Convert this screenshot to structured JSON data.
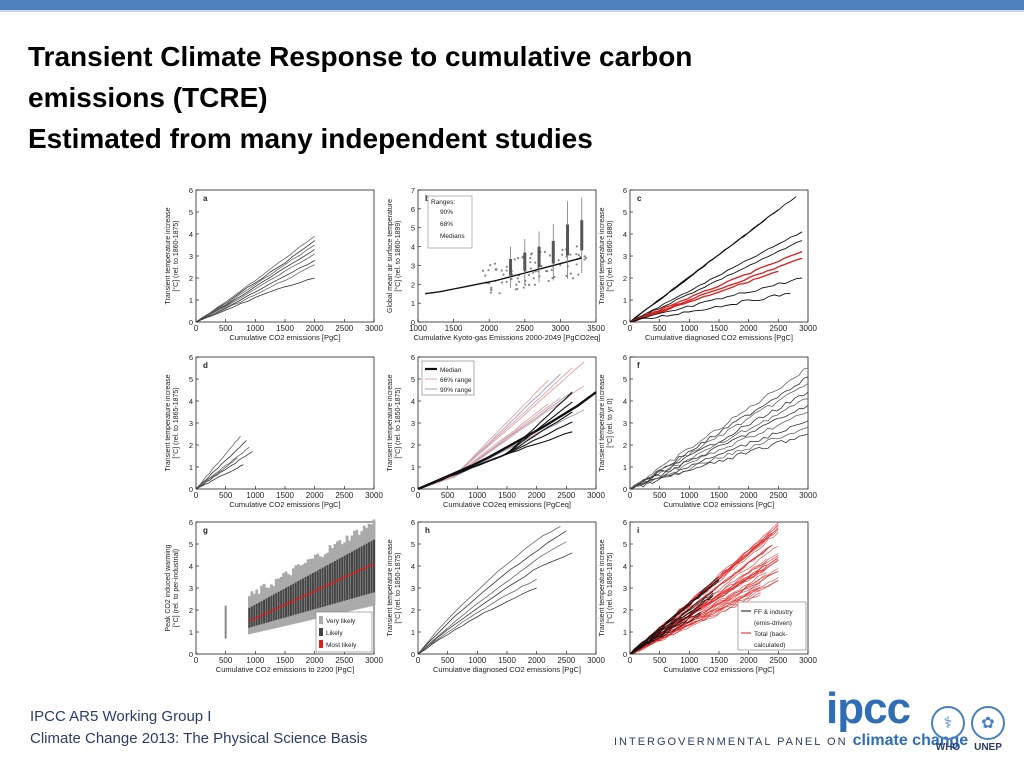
{
  "slide": {
    "title_lines": [
      "Transient Climate Response to cumulative carbon",
      "emissions (TCRE)",
      "Estimated from many independent studies"
    ],
    "footer_lines": [
      "IPCC AR5 Working Group I",
      "Climate Change 2013:  The Physical Science Basis"
    ],
    "logo": {
      "name": "ipcc",
      "line_prefix": "INTERGOVERNMENTAL PANEL ON",
      "line_emph": "climate change"
    },
    "agencies": [
      "WHO",
      "UNEP"
    ],
    "colors": {
      "topbar": "#4f81bd",
      "red_series": "#dd1c1c",
      "black_series": "#111111",
      "logo_blue": "#2f6db5"
    }
  },
  "chart_data": [
    {
      "panel": "a",
      "type": "line",
      "xlabel": "Cumulative CO2 emissions [PgC]",
      "ylabel": [
        "Transient temperature increase",
        "[°C] (rel. to 1860-1875)"
      ],
      "xlim": [
        0,
        3000
      ],
      "ylim": [
        0,
        6
      ],
      "xticks": [
        "0",
        "500",
        "1000",
        "1500",
        "2000",
        "2500",
        "3000"
      ],
      "yticks": [
        "0",
        "1",
        "2",
        "3",
        "4",
        "5",
        "6"
      ],
      "series": [
        {
          "x": [
            0,
            500,
            1000,
            1500,
            2000
          ],
          "y": [
            0,
            0.9,
            1.9,
            2.9,
            3.9
          ]
        },
        {
          "x": [
            0,
            500,
            1000,
            1500,
            2000
          ],
          "y": [
            0,
            0.85,
            1.8,
            2.7,
            3.7
          ]
        },
        {
          "x": [
            0,
            500,
            1000,
            1500,
            2000
          ],
          "y": [
            0,
            0.8,
            1.7,
            2.6,
            3.5
          ]
        },
        {
          "x": [
            0,
            500,
            1000,
            1500,
            2000
          ],
          "y": [
            0,
            0.75,
            1.6,
            2.45,
            3.3
          ]
        },
        {
          "x": [
            0,
            500,
            1000,
            1500,
            2000
          ],
          "y": [
            0,
            0.7,
            1.5,
            2.3,
            3.1
          ]
        },
        {
          "x": [
            0,
            500,
            1000,
            1500,
            2000
          ],
          "y": [
            0,
            0.65,
            1.35,
            2.1,
            2.8
          ]
        },
        {
          "x": [
            0,
            500,
            1000,
            1500,
            2000
          ],
          "y": [
            0,
            0.6,
            1.25,
            1.9,
            2.6
          ]
        },
        {
          "x": [
            0,
            500,
            1000,
            1500,
            2000
          ],
          "y": [
            0,
            0.55,
            1.1,
            1.6,
            2.0
          ]
        }
      ]
    },
    {
      "panel": "b",
      "type": "scatter",
      "xlabel": "Cumulative Kyoto-gas Emissions 2000-2049 [PgCO2eq]",
      "ylabel": [
        "Global mean air surface temperature",
        "[°C] (rel. to 1860-1899)"
      ],
      "xlim": [
        1000,
        3500
      ],
      "ylim": [
        0,
        7
      ],
      "xticks": [
        "1000",
        "1500",
        "2000",
        "2500",
        "3000",
        "3500"
      ],
      "yticks": [
        "0",
        "1",
        "2",
        "3",
        "4",
        "5",
        "6",
        "7"
      ],
      "legend": {
        "title": "Ranges:",
        "items": [
          "90%",
          "68%",
          "Medians"
        ],
        "position": "top-left"
      },
      "medians": {
        "x": [
          1100,
          1300,
          1500,
          1700,
          1900,
          2100,
          2300,
          2500,
          2700,
          2900,
          3100,
          3300
        ],
        "y": [
          1.5,
          1.6,
          1.75,
          1.9,
          2.05,
          2.2,
          2.4,
          2.6,
          2.8,
          3.0,
          3.2,
          3.4
        ]
      },
      "ranges": [
        {
          "x": 2300,
          "lo": 1.8,
          "hi": 4.0
        },
        {
          "x": 2500,
          "lo": 2.0,
          "hi": 4.4
        },
        {
          "x": 2700,
          "lo": 2.1,
          "hi": 4.8
        },
        {
          "x": 2900,
          "lo": 2.2,
          "hi": 5.2
        },
        {
          "x": 3100,
          "lo": 2.3,
          "hi": 6.4
        },
        {
          "x": 3300,
          "lo": 2.6,
          "hi": 6.6
        }
      ]
    },
    {
      "panel": "c",
      "type": "line",
      "xlabel": "Cumulative diagnosed CO2 emissions [PgC]",
      "ylabel": [
        "Transient temperature increase",
        "[°C] (rel. to 1860-1880)"
      ],
      "xlim": [
        0,
        3000
      ],
      "ylim": [
        0,
        6
      ],
      "xticks": [
        "0",
        "500",
        "1000",
        "1500",
        "2000",
        "2500",
        "3000"
      ],
      "yticks": [
        "0",
        "1",
        "2",
        "3",
        "4",
        "5",
        "6"
      ],
      "series": [
        {
          "x": [
            0,
            2800
          ],
          "y": [
            0,
            5.7
          ],
          "color": "black"
        },
        {
          "x": [
            0,
            2500
          ],
          "y": [
            0,
            5.1
          ],
          "color": "black"
        },
        {
          "x": [
            0,
            2300
          ],
          "y": [
            0,
            4.7
          ],
          "color": "black"
        },
        {
          "x": [
            0,
            2900
          ],
          "y": [
            0,
            4.1
          ],
          "color": "black"
        },
        {
          "x": [
            0,
            2900
          ],
          "y": [
            0,
            3.7
          ],
          "color": "black"
        },
        {
          "x": [
            0,
            2900
          ],
          "y": [
            0,
            3.2
          ],
          "color": "red"
        },
        {
          "x": [
            0,
            2900
          ],
          "y": [
            0,
            2.9
          ],
          "color": "red"
        },
        {
          "x": [
            0,
            2500
          ],
          "y": [
            0,
            2.3
          ],
          "color": "red"
        },
        {
          "x": [
            0,
            2900
          ],
          "y": [
            0,
            2.0
          ],
          "color": "black"
        },
        {
          "x": [
            0,
            2700
          ],
          "y": [
            0,
            1.3
          ],
          "color": "black"
        }
      ]
    },
    {
      "panel": "d",
      "type": "line",
      "xlabel": "Cumulative CO2 emissions [PgC]",
      "ylabel": [
        "Transient temperature increase",
        "[°C] (rel. to 1865-1875)"
      ],
      "xlim": [
        0,
        3000
      ],
      "ylim": [
        0,
        6
      ],
      "xticks": [
        "0",
        "500",
        "1000",
        "1500",
        "2000",
        "2500",
        "3000"
      ],
      "yticks": [
        "0",
        "1",
        "2",
        "3",
        "4",
        "5",
        "6"
      ],
      "series": [
        {
          "x": [
            0,
            750
          ],
          "y": [
            0,
            2.4
          ]
        },
        {
          "x": [
            0,
            850
          ],
          "y": [
            0,
            2.2
          ]
        },
        {
          "x": [
            0,
            900
          ],
          "y": [
            0,
            1.9
          ]
        },
        {
          "x": [
            0,
            950
          ],
          "y": [
            0,
            1.7
          ]
        },
        {
          "x": [
            0,
            700
          ],
          "y": [
            0,
            1.4
          ]
        },
        {
          "x": [
            0,
            800
          ],
          "y": [
            0,
            1.1
          ]
        }
      ]
    },
    {
      "panel": "e",
      "type": "line",
      "xlabel": "Cumulative CO2eq emissions [PgCeq]",
      "ylabel": [
        "Transient temperature increase",
        "[°C] (rel. to 1850-1875)"
      ],
      "xlim": [
        0,
        3000
      ],
      "ylim": [
        0,
        6
      ],
      "xticks": [
        "0",
        "500",
        "1000",
        "1500",
        "2000",
        "2500",
        "3000"
      ],
      "yticks": [
        "0",
        "1",
        "2",
        "3",
        "4",
        "5",
        "6"
      ],
      "legend": {
        "items": [
          "Median",
          "66% range",
          "90% range"
        ],
        "position": "top-left"
      },
      "median": {
        "x": [
          0,
          300,
          600,
          900,
          1200,
          1500,
          1800,
          2100,
          2400,
          2700,
          3000
        ],
        "y": [
          0,
          0.35,
          0.7,
          1.05,
          1.45,
          1.9,
          2.35,
          2.8,
          3.3,
          3.8,
          4.4
        ]
      },
      "range66": {
        "x": [
          0,
          3000
        ],
        "lo": [
          0,
          3.6
        ],
        "hi": [
          0,
          5.0
        ]
      },
      "range90": {
        "x": [
          0,
          3000
        ],
        "lo": [
          0,
          3.0
        ],
        "hi": [
          0,
          5.8
        ]
      }
    },
    {
      "panel": "f",
      "type": "line",
      "xlabel": "Cumulative CO2 emissions [PgC]",
      "ylabel": [
        "Transient temperature increase",
        "[°C] (rel. to yr 0)"
      ],
      "xlim": [
        0,
        3000
      ],
      "ylim": [
        0,
        6
      ],
      "xticks": [
        "0",
        "500",
        "1000",
        "1500",
        "2000",
        "2500",
        "3000"
      ],
      "yticks": [
        "0",
        "1",
        "2",
        "3",
        "4",
        "5",
        "6"
      ],
      "series": [
        {
          "x": [
            0,
            3000
          ],
          "y": [
            0,
            5.5
          ]
        },
        {
          "x": [
            0,
            3000
          ],
          "y": [
            0,
            5.1
          ]
        },
        {
          "x": [
            0,
            3000
          ],
          "y": [
            0,
            4.8
          ]
        },
        {
          "x": [
            0,
            3000
          ],
          "y": [
            0,
            4.4
          ]
        },
        {
          "x": [
            0,
            3000
          ],
          "y": [
            0,
            4.1
          ]
        },
        {
          "x": [
            0,
            3000
          ],
          "y": [
            0,
            3.8
          ]
        },
        {
          "x": [
            0,
            3000
          ],
          "y": [
            0,
            3.5
          ]
        },
        {
          "x": [
            0,
            3000
          ],
          "y": [
            0,
            3.1
          ]
        },
        {
          "x": [
            0,
            3000
          ],
          "y": [
            0,
            2.8
          ]
        },
        {
          "x": [
            0,
            3000
          ],
          "y": [
            0,
            2.5
          ]
        }
      ]
    },
    {
      "panel": "g",
      "type": "bar",
      "xlabel": "Cumulative CO2 emissions to 2200 [PgC]",
      "ylabel": [
        "Peak CO2 induced warming",
        "[°C] (rel. to per-industrial)"
      ],
      "xlim": [
        0,
        3000
      ],
      "ylim": [
        0,
        6
      ],
      "xticks": [
        "0",
        "500",
        "1000",
        "1500",
        "2000",
        "2500",
        "3000"
      ],
      "yticks": [
        "0",
        "1",
        "2",
        "3",
        "4",
        "5",
        "6"
      ],
      "legend": {
        "items": [
          "Very likely",
          "Likely",
          "Most likely"
        ],
        "position": "bottom-right"
      },
      "bands": {
        "x": [
          900,
          3000
        ],
        "very_likely_lo": [
          0.9,
          2.2
        ],
        "very_likely_hi": [
          2.6,
          6.0
        ],
        "likely_lo": [
          1.2,
          2.8
        ],
        "likely_hi": [
          2.1,
          5.2
        ],
        "most_likely": [
          1.5,
          4.1
        ]
      }
    },
    {
      "panel": "h",
      "type": "line",
      "xlabel": "Cumulative diagnosed CO2 emissions [PgC]",
      "ylabel": [
        "Transient temperature increase",
        "[°C] (rel. to 1850-1875)"
      ],
      "xlim": [
        0,
        3000
      ],
      "ylim": [
        0,
        6
      ],
      "xticks": [
        "0",
        "500",
        "1000",
        "1500",
        "2000",
        "2500",
        "3000"
      ],
      "yticks": [
        "0",
        "1",
        "2",
        "3",
        "4",
        "5",
        "6"
      ],
      "series": [
        {
          "x": [
            0,
            500,
            1000,
            1500,
            2000,
            2400
          ],
          "y": [
            0,
            1.6,
            2.9,
            4.1,
            5.2,
            5.8
          ]
        },
        {
          "x": [
            0,
            500,
            1000,
            1500,
            2000,
            2500
          ],
          "y": [
            0,
            1.4,
            2.6,
            3.7,
            4.7,
            5.6
          ]
        },
        {
          "x": [
            0,
            500,
            1000,
            1500,
            2000,
            2500
          ],
          "y": [
            0,
            1.2,
            2.3,
            3.3,
            4.3,
            5.1
          ]
        },
        {
          "x": [
            0,
            500,
            1000,
            1500,
            2000,
            2600
          ],
          "y": [
            0,
            1.1,
            2.1,
            3.0,
            3.9,
            4.6
          ]
        },
        {
          "x": [
            0,
            500,
            1000,
            1500,
            2000
          ],
          "y": [
            0,
            1.0,
            1.9,
            2.7,
            3.4
          ]
        },
        {
          "x": [
            0,
            500,
            1000,
            1500,
            2000
          ],
          "y": [
            0,
            0.9,
            1.7,
            2.4,
            3.0
          ]
        }
      ]
    },
    {
      "panel": "i",
      "type": "line",
      "xlabel": "Cumulative CO2 emissions [PgC]",
      "ylabel": [
        "Transient temperature increase",
        "[°C] (rel. to 1850-1875)"
      ],
      "xlim": [
        0,
        3000
      ],
      "ylim": [
        0,
        6
      ],
      "xticks": [
        "0",
        "500",
        "1000",
        "1500",
        "2000",
        "2500",
        "3000"
      ],
      "yticks": [
        "0",
        "1",
        "2",
        "3",
        "4",
        "5",
        "6"
      ],
      "legend": {
        "items": [
          "FF & industry",
          "(emis-driven)",
          "Total (back-",
          "calculated)"
        ],
        "position": "right"
      },
      "series_black": [
        {
          "x": [
            0,
            1500
          ],
          "y": [
            0,
            3.4
          ]
        },
        {
          "x": [
            0,
            1400
          ],
          "y": [
            0,
            2.6
          ]
        },
        {
          "x": [
            0,
            1200
          ],
          "y": [
            0,
            2.0
          ]
        }
      ],
      "series_red": [
        {
          "x": [
            0,
            2500
          ],
          "y": [
            0,
            5.8
          ]
        },
        {
          "x": [
            0,
            2400
          ],
          "y": [
            0,
            5.1
          ]
        },
        {
          "x": [
            0,
            2500
          ],
          "y": [
            0,
            4.6
          ]
        },
        {
          "x": [
            0,
            2300
          ],
          "y": [
            0,
            4.0
          ]
        },
        {
          "x": [
            0,
            2500
          ],
          "y": [
            0,
            3.6
          ]
        },
        {
          "x": [
            0,
            2200
          ],
          "y": [
            0,
            3.0
          ]
        }
      ]
    }
  ]
}
